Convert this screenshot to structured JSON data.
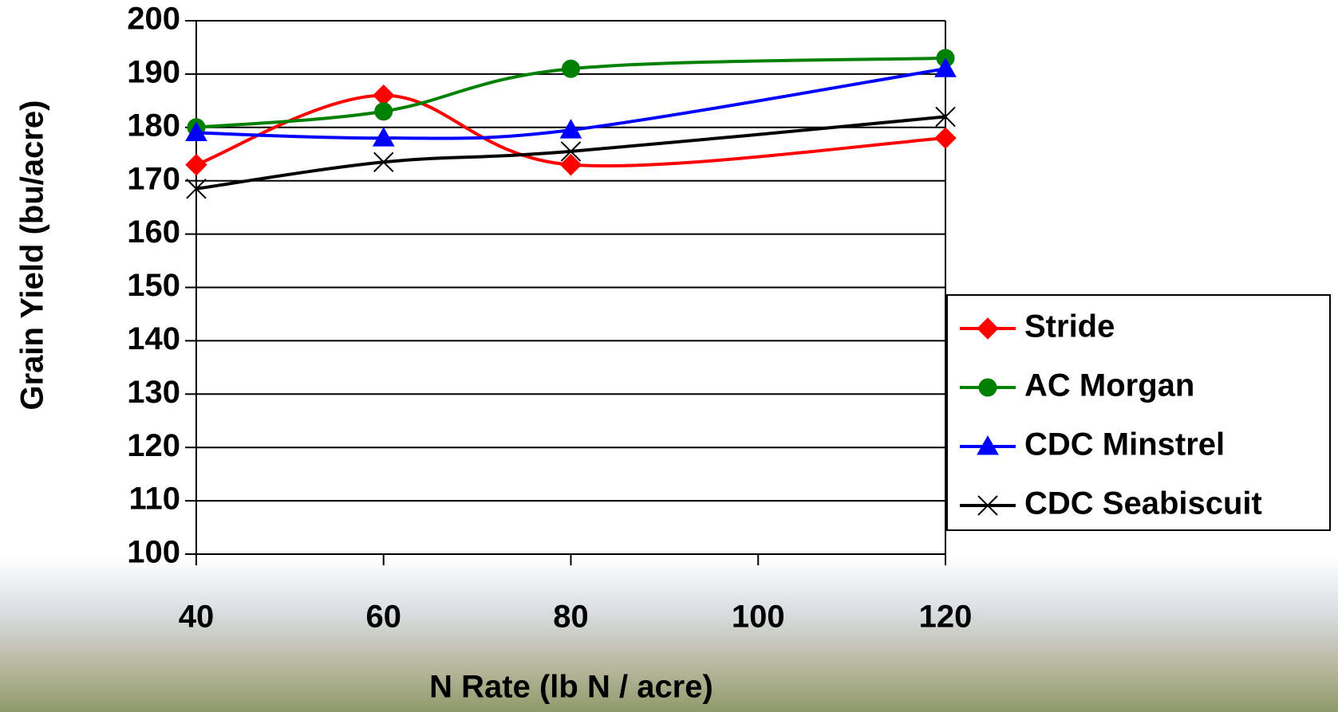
{
  "chart_data": {
    "type": "line",
    "xlabel": "N Rate (lb N / acre)",
    "ylabel": "Grain Yield (bu/acre)",
    "x": [
      40,
      60,
      80,
      120
    ],
    "series": [
      {
        "name": "Stride",
        "color": "#ff0000",
        "marker": "diamond",
        "values": [
          173,
          186,
          173,
          178
        ]
      },
      {
        "name": "AC Morgan",
        "color": "#008000",
        "marker": "circle",
        "values": [
          180,
          183,
          191,
          193
        ]
      },
      {
        "name": "CDC Minstrel",
        "color": "#0000ff",
        "marker": "triangle",
        "values": [
          179,
          178,
          179.5,
          191
        ]
      },
      {
        "name": "CDC Seabiscuit",
        "color": "#000000",
        "marker": "x",
        "values": [
          168.5,
          173.5,
          175.5,
          182
        ]
      }
    ],
    "xlim": [
      40,
      120
    ],
    "xticks": [
      40,
      60,
      80,
      100,
      120
    ],
    "ylim": [
      100,
      200
    ],
    "yticks": [
      100,
      110,
      120,
      130,
      140,
      150,
      160,
      170,
      180,
      190,
      200
    ],
    "grid": true,
    "smooth": true,
    "legend": "right"
  }
}
